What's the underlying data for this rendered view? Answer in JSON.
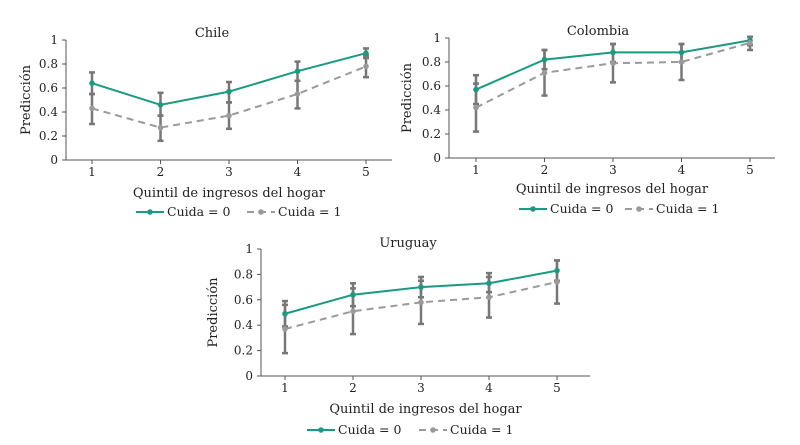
{
  "colors": {
    "series_0": "#1a9a80",
    "series_1": "#9a9a9a",
    "error_bar": "#777777",
    "axis": "#555555"
  },
  "chart_data": [
    {
      "type": "line",
      "title": "Chile",
      "xlabel": "Quintil de ingresos del hogar",
      "ylabel": "Predicción",
      "categories": [
        "1",
        "2",
        "3",
        "4",
        "5"
      ],
      "yticks": [
        "0",
        "0.2",
        "0.4",
        "0.6",
        "0.8",
        "1"
      ],
      "ylim": [
        0,
        1
      ],
      "legend_placement": "bottom",
      "grid": false,
      "series": [
        {
          "name": "Cuida = 0",
          "style": "solid",
          "values": [
            0.64,
            0.46,
            0.57,
            0.74,
            0.89
          ],
          "lower": [
            0.55,
            0.37,
            0.48,
            0.66,
            0.85
          ],
          "upper": [
            0.73,
            0.56,
            0.65,
            0.82,
            0.93
          ]
        },
        {
          "name": "Cuida = 1",
          "style": "dashed",
          "values": [
            0.43,
            0.27,
            0.37,
            0.55,
            0.78
          ],
          "lower": [
            0.3,
            0.16,
            0.26,
            0.43,
            0.69
          ],
          "upper": [
            0.55,
            0.37,
            0.48,
            0.66,
            0.87
          ]
        }
      ]
    },
    {
      "type": "line",
      "title": "Colombia",
      "xlabel": "Quintil de ingresos del hogar",
      "ylabel": "Predicción",
      "categories": [
        "1",
        "2",
        "3",
        "4",
        "5"
      ],
      "yticks": [
        "0",
        "0.2",
        "0.4",
        "0.6",
        "0.8",
        "1"
      ],
      "ylim": [
        0,
        1
      ],
      "legend_placement": "bottom",
      "grid": false,
      "series": [
        {
          "name": "Cuida = 0",
          "style": "solid",
          "values": [
            0.57,
            0.82,
            0.88,
            0.88,
            0.98
          ],
          "lower": [
            0.45,
            0.74,
            0.8,
            0.8,
            0.94
          ],
          "upper": [
            0.69,
            0.9,
            0.95,
            0.95,
            1.01
          ]
        },
        {
          "name": "Cuida = 1",
          "style": "dashed",
          "values": [
            0.42,
            0.71,
            0.79,
            0.8,
            0.96
          ],
          "lower": [
            0.22,
            0.52,
            0.63,
            0.65,
            0.9
          ],
          "upper": [
            0.62,
            0.9,
            0.95,
            0.95,
            1.01
          ]
        }
      ]
    },
    {
      "type": "line",
      "title": "Uruguay",
      "xlabel": "Quintil de ingresos del hogar",
      "ylabel": "Predicción",
      "categories": [
        "1",
        "2",
        "3",
        "4",
        "5"
      ],
      "yticks": [
        "0",
        "0.2",
        "0.4",
        "0.6",
        "0.8",
        "1"
      ],
      "ylim": [
        0,
        1
      ],
      "legend_placement": "bottom",
      "grid": false,
      "series": [
        {
          "name": "Cuida = 0",
          "style": "solid",
          "values": [
            0.49,
            0.64,
            0.7,
            0.73,
            0.83
          ],
          "lower": [
            0.39,
            0.55,
            0.62,
            0.66,
            0.75
          ],
          "upper": [
            0.59,
            0.73,
            0.78,
            0.81,
            0.91
          ]
        },
        {
          "name": "Cuida = 1",
          "style": "dashed",
          "values": [
            0.37,
            0.51,
            0.58,
            0.62,
            0.74
          ],
          "lower": [
            0.18,
            0.33,
            0.41,
            0.46,
            0.57
          ],
          "upper": [
            0.56,
            0.69,
            0.75,
            0.78,
            0.91
          ]
        }
      ]
    }
  ]
}
